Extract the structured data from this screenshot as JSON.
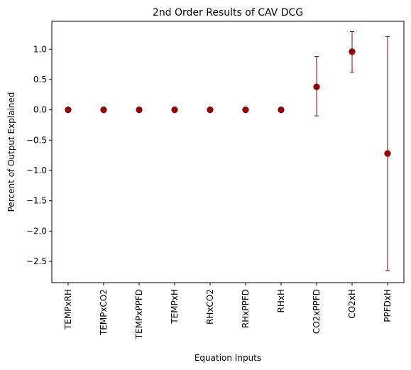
{
  "chart_data": {
    "type": "scatter",
    "title": "2nd Order Results of CAV DCG",
    "xlabel": "Equation Inputs",
    "ylabel": "Percent of Output Explained",
    "categories": [
      "TEMPxRH",
      "TEMPxCO2",
      "TEMPxPPFD",
      "TEMPxH",
      "RHxCO2",
      "RHxPPFD",
      "RHxH",
      "CO2xPPFD",
      "CO2xH",
      "PPFDxH"
    ],
    "values": [
      0.0,
      0.0,
      0.0,
      0.0,
      0.0,
      0.0,
      0.0,
      0.38,
      0.96,
      -0.72
    ],
    "error_low": [
      0.0,
      0.0,
      0.0,
      0.0,
      0.0,
      0.0,
      0.0,
      -0.1,
      0.62,
      -2.65
    ],
    "error_high": [
      0.0,
      0.0,
      0.0,
      0.0,
      0.0,
      0.0,
      0.0,
      0.88,
      1.29,
      1.21
    ],
    "ylim": [
      -2.85,
      1.46
    ],
    "yticks": [
      "1.0",
      "0.5",
      "0.0",
      "−0.5",
      "−1.0",
      "−1.5",
      "−2.0",
      "−2.5"
    ],
    "ytick_values": [
      1.0,
      0.5,
      0.0,
      -0.5,
      -1.0,
      -1.5,
      -2.0,
      -2.5
    ],
    "grid": false,
    "marker_color": "#8b0000",
    "errorbar_color": "#8b0000"
  }
}
